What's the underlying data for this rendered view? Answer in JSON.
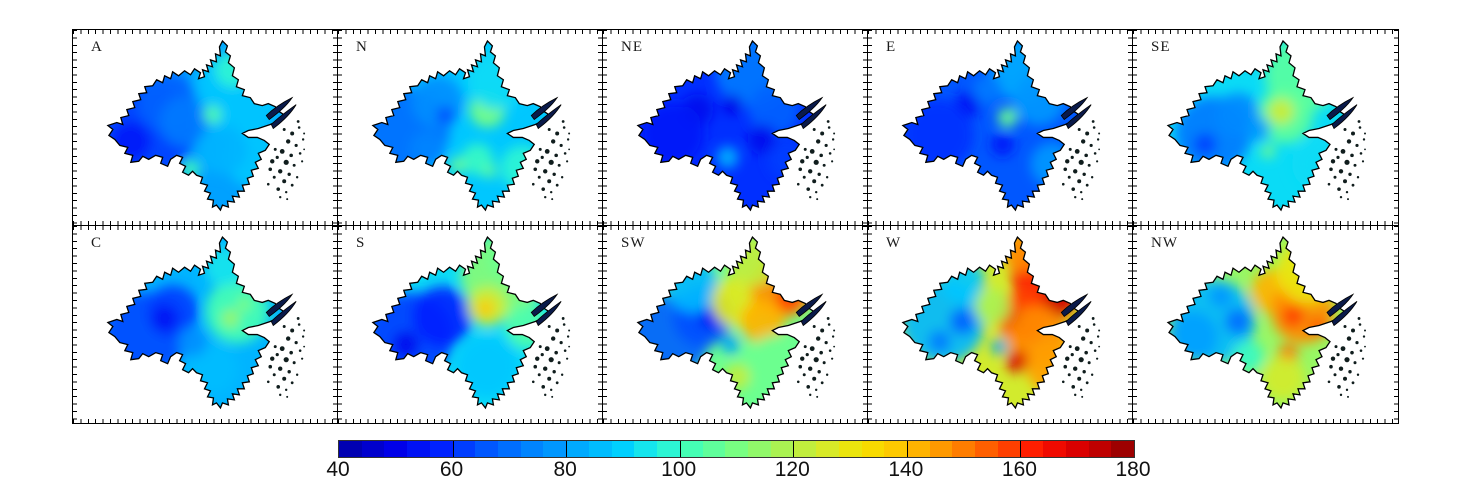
{
  "figure": {
    "background": "#ffffff",
    "outline_color": "#000000",
    "water_feature_color": "#0a1a4a",
    "island_color": "#101d1d"
  },
  "panels": [
    {
      "label": "A",
      "base": 80,
      "blobs": [
        [
          165,
          65,
          45,
          88
        ],
        [
          160,
          40,
          18,
          98
        ],
        [
          75,
          100,
          48,
          62
        ],
        [
          95,
          72,
          30,
          68
        ],
        [
          58,
          112,
          20,
          56
        ],
        [
          112,
          92,
          25,
          72
        ],
        [
          140,
          85,
          9,
          104
        ],
        [
          118,
          140,
          9,
          102
        ],
        [
          182,
          128,
          30,
          88
        ],
        [
          150,
          120,
          25,
          84
        ]
      ]
    },
    {
      "label": "N",
      "base": 88,
      "blobs": [
        [
          70,
          100,
          42,
          70
        ],
        [
          100,
          72,
          26,
          76
        ],
        [
          108,
          86,
          9,
          64
        ],
        [
          150,
          80,
          18,
          110
        ],
        [
          160,
          50,
          30,
          92
        ],
        [
          140,
          130,
          16,
          100
        ],
        [
          120,
          136,
          8,
          108
        ],
        [
          152,
          142,
          7,
          106
        ],
        [
          185,
          138,
          22,
          98
        ],
        [
          90,
          120,
          18,
          74
        ]
      ]
    },
    {
      "label": "NE",
      "base": 60,
      "blobs": [
        [
          150,
          40,
          38,
          72
        ],
        [
          172,
          80,
          26,
          68
        ],
        [
          95,
          80,
          16,
          52
        ],
        [
          130,
          75,
          10,
          50
        ],
        [
          160,
          110,
          15,
          52
        ],
        [
          125,
          128,
          11,
          84
        ],
        [
          70,
          105,
          32,
          56
        ],
        [
          185,
          130,
          20,
          62
        ]
      ]
    },
    {
      "label": "E",
      "base": 66,
      "blobs": [
        [
          155,
          40,
          32,
          82
        ],
        [
          172,
          70,
          26,
          78
        ],
        [
          140,
          88,
          10,
          108
        ],
        [
          100,
          75,
          13,
          54
        ],
        [
          135,
          115,
          12,
          56
        ],
        [
          70,
          105,
          36,
          60
        ],
        [
          185,
          135,
          22,
          78
        ],
        [
          120,
          60,
          15,
          72
        ]
      ]
    },
    {
      "label": "SE",
      "base": 92,
      "blobs": [
        [
          170,
          45,
          38,
          105
        ],
        [
          152,
          86,
          28,
          106
        ],
        [
          148,
          82,
          13,
          124
        ],
        [
          80,
          105,
          38,
          72
        ],
        [
          105,
          85,
          22,
          75
        ],
        [
          72,
          115,
          11,
          62
        ],
        [
          185,
          135,
          26,
          92
        ],
        [
          135,
          122,
          7,
          110
        ],
        [
          125,
          100,
          12,
          78
        ]
      ]
    },
    {
      "label": "C",
      "base": 84,
      "blobs": [
        [
          72,
          108,
          42,
          64
        ],
        [
          100,
          85,
          26,
          62
        ],
        [
          92,
          92,
          13,
          54
        ],
        [
          165,
          85,
          32,
          102
        ],
        [
          158,
          92,
          9,
          116
        ],
        [
          172,
          78,
          7,
          112
        ],
        [
          140,
          142,
          26,
          86
        ],
        [
          152,
          40,
          20,
          94
        ],
        [
          120,
          115,
          15,
          76
        ]
      ]
    },
    {
      "label": "S",
      "base": 92,
      "blobs": [
        [
          72,
          110,
          44,
          62
        ],
        [
          105,
          90,
          30,
          58
        ],
        [
          68,
          118,
          13,
          52
        ],
        [
          165,
          50,
          42,
          112
        ],
        [
          150,
          80,
          20,
          124
        ],
        [
          148,
          82,
          9,
          138
        ],
        [
          150,
          140,
          32,
          88
        ],
        [
          190,
          100,
          22,
          104
        ],
        [
          175,
          30,
          25,
          108
        ]
      ]
    },
    {
      "label": "SW",
      "base": 108,
      "blobs": [
        [
          65,
          110,
          42,
          68
        ],
        [
          100,
          90,
          30,
          65
        ],
        [
          108,
          92,
          11,
          55
        ],
        [
          90,
          60,
          26,
          85
        ],
        [
          135,
          75,
          26,
          128
        ],
        [
          180,
          60,
          32,
          148
        ],
        [
          186,
          72,
          13,
          158
        ],
        [
          160,
          95,
          22,
          142
        ],
        [
          175,
          140,
          32,
          108
        ],
        [
          135,
          150,
          13,
          122
        ],
        [
          128,
          118,
          9,
          80
        ],
        [
          150,
          35,
          25,
          122
        ]
      ]
    },
    {
      "label": "W",
      "base": 125,
      "blobs": [
        [
          75,
          95,
          42,
          85
        ],
        [
          95,
          95,
          13,
          68
        ],
        [
          72,
          115,
          11,
          72
        ],
        [
          95,
          55,
          22,
          88
        ],
        [
          180,
          50,
          36,
          162
        ],
        [
          190,
          78,
          16,
          172
        ],
        [
          155,
          90,
          26,
          158
        ],
        [
          150,
          95,
          10,
          172
        ],
        [
          170,
          110,
          30,
          148
        ],
        [
          150,
          135,
          11,
          170
        ],
        [
          185,
          140,
          26,
          145
        ],
        [
          125,
          80,
          18,
          118
        ],
        [
          132,
          120,
          8,
          80
        ],
        [
          155,
          25,
          20,
          148
        ]
      ]
    },
    {
      "label": "NW",
      "base": 115,
      "blobs": [
        [
          80,
          95,
          42,
          85
        ],
        [
          105,
          95,
          13,
          70
        ],
        [
          88,
          70,
          11,
          78
        ],
        [
          140,
          65,
          22,
          142
        ],
        [
          170,
          85,
          32,
          148
        ],
        [
          160,
          90,
          11,
          158
        ],
        [
          185,
          100,
          9,
          155
        ],
        [
          175,
          45,
          32,
          130
        ],
        [
          155,
          128,
          10,
          152
        ],
        [
          150,
          152,
          22,
          125
        ],
        [
          115,
          130,
          16,
          100
        ],
        [
          60,
          110,
          25,
          80
        ]
      ]
    }
  ],
  "colorbar": {
    "min": 40,
    "max": 180,
    "step": 4,
    "tick_interval": 20,
    "tick_values": [
      40,
      60,
      80,
      100,
      120,
      140,
      160,
      180
    ],
    "tick_labels": [
      "40",
      "60",
      "80",
      "100",
      "120",
      "140",
      "160",
      "180"
    ],
    "jet_stops": [
      [
        40,
        "#0000A5"
      ],
      [
        50,
        "#0000E8"
      ],
      [
        58,
        "#0022FF"
      ],
      [
        66,
        "#0057FF"
      ],
      [
        74,
        "#0084FF"
      ],
      [
        82,
        "#00AAFF"
      ],
      [
        90,
        "#00D0FF"
      ],
      [
        96,
        "#1FF0E4"
      ],
      [
        102,
        "#45FFB4"
      ],
      [
        110,
        "#78FF82"
      ],
      [
        118,
        "#AAF252"
      ],
      [
        126,
        "#D8EA28"
      ],
      [
        132,
        "#F5E300"
      ],
      [
        140,
        "#FFC000"
      ],
      [
        148,
        "#FF8C00"
      ],
      [
        156,
        "#FF5000"
      ],
      [
        162,
        "#FF1E00"
      ],
      [
        168,
        "#E80000"
      ],
      [
        174,
        "#BE0000"
      ],
      [
        180,
        "#8C0000"
      ]
    ]
  }
}
